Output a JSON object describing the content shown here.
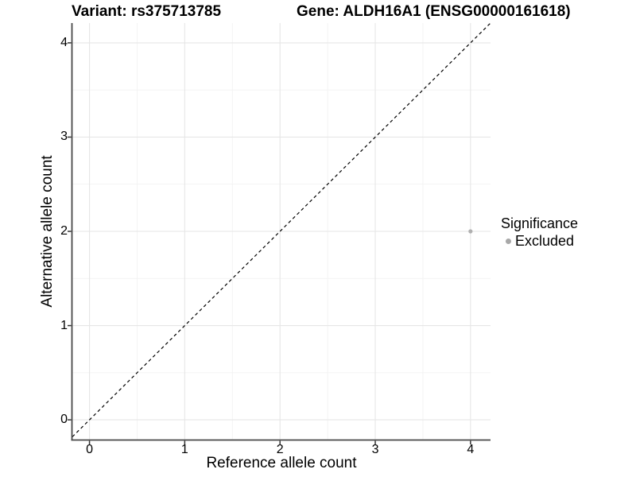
{
  "titles": {
    "variant": "Variant: rs375713785",
    "gene": "Gene: ALDH16A1 (ENSG00000161618)"
  },
  "chart_data": {
    "type": "scatter",
    "xlabel": "Reference allele count",
    "ylabel": "Alternative allele count",
    "xlim": [
      -0.18,
      4.21
    ],
    "ylim": [
      -0.21,
      4.21
    ],
    "x_ticks": [
      0,
      1,
      2,
      3,
      4
    ],
    "y_ticks": [
      0,
      1,
      2,
      3,
      4
    ],
    "x_minor_ticks": [
      0.5,
      1.5,
      2.5,
      3.5
    ],
    "y_minor_ticks": [
      0.5,
      1.5,
      2.5,
      3.5
    ],
    "grid": "major+minor",
    "identity_line": {
      "type": "y=x",
      "style": "dashed",
      "color": "#000000"
    },
    "series": [
      {
        "name": "Excluded",
        "color": "#b0b0b0",
        "point_radius": 2.6,
        "points": [
          {
            "x": 4,
            "y": 2
          }
        ]
      }
    ],
    "legend": {
      "title": "Significance",
      "position": "right",
      "items": [
        {
          "label": "Excluded",
          "color": "#a8a8a8"
        }
      ]
    }
  },
  "style": {
    "background": "#ffffff",
    "grid_major": "#e6e6e6",
    "grid_minor": "#f2f2f2",
    "axis_line": "#484848",
    "tick_mark": "#333333",
    "text": "#000000"
  }
}
